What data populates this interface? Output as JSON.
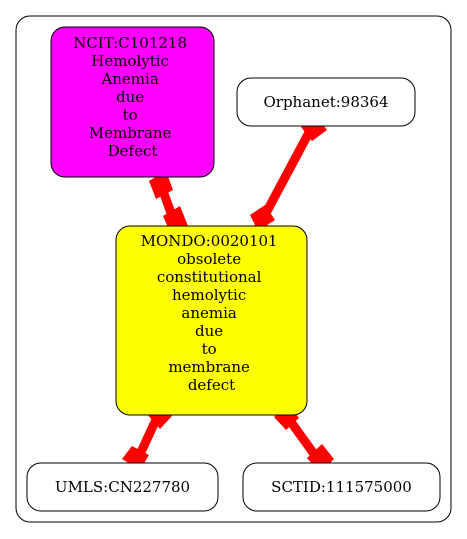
{
  "colors": {
    "background": "#ffffff",
    "cluster_border": "#000000",
    "edge": "#ff0000",
    "ncit_fill": "#ff00ff",
    "mondo_fill": "#ffff00",
    "plain_fill": "#ffffff"
  },
  "nodes": {
    "ncit": {
      "lines": [
        "NCIT:C101218",
        "Hemolytic",
        "Anemia",
        "due",
        "to",
        "Membrane",
        "Defect"
      ]
    },
    "orphanet": {
      "lines": [
        "Orphanet:98364"
      ]
    },
    "mondo": {
      "lines": [
        "MONDO:0020101",
        "obsolete",
        "constitutional",
        "hemolytic",
        "anemia",
        "due",
        "to",
        "membrane",
        "defect"
      ]
    },
    "umls": {
      "lines": [
        "UMLS:CN227780"
      ]
    },
    "sctid": {
      "lines": [
        "SCTID:111575000"
      ]
    }
  }
}
